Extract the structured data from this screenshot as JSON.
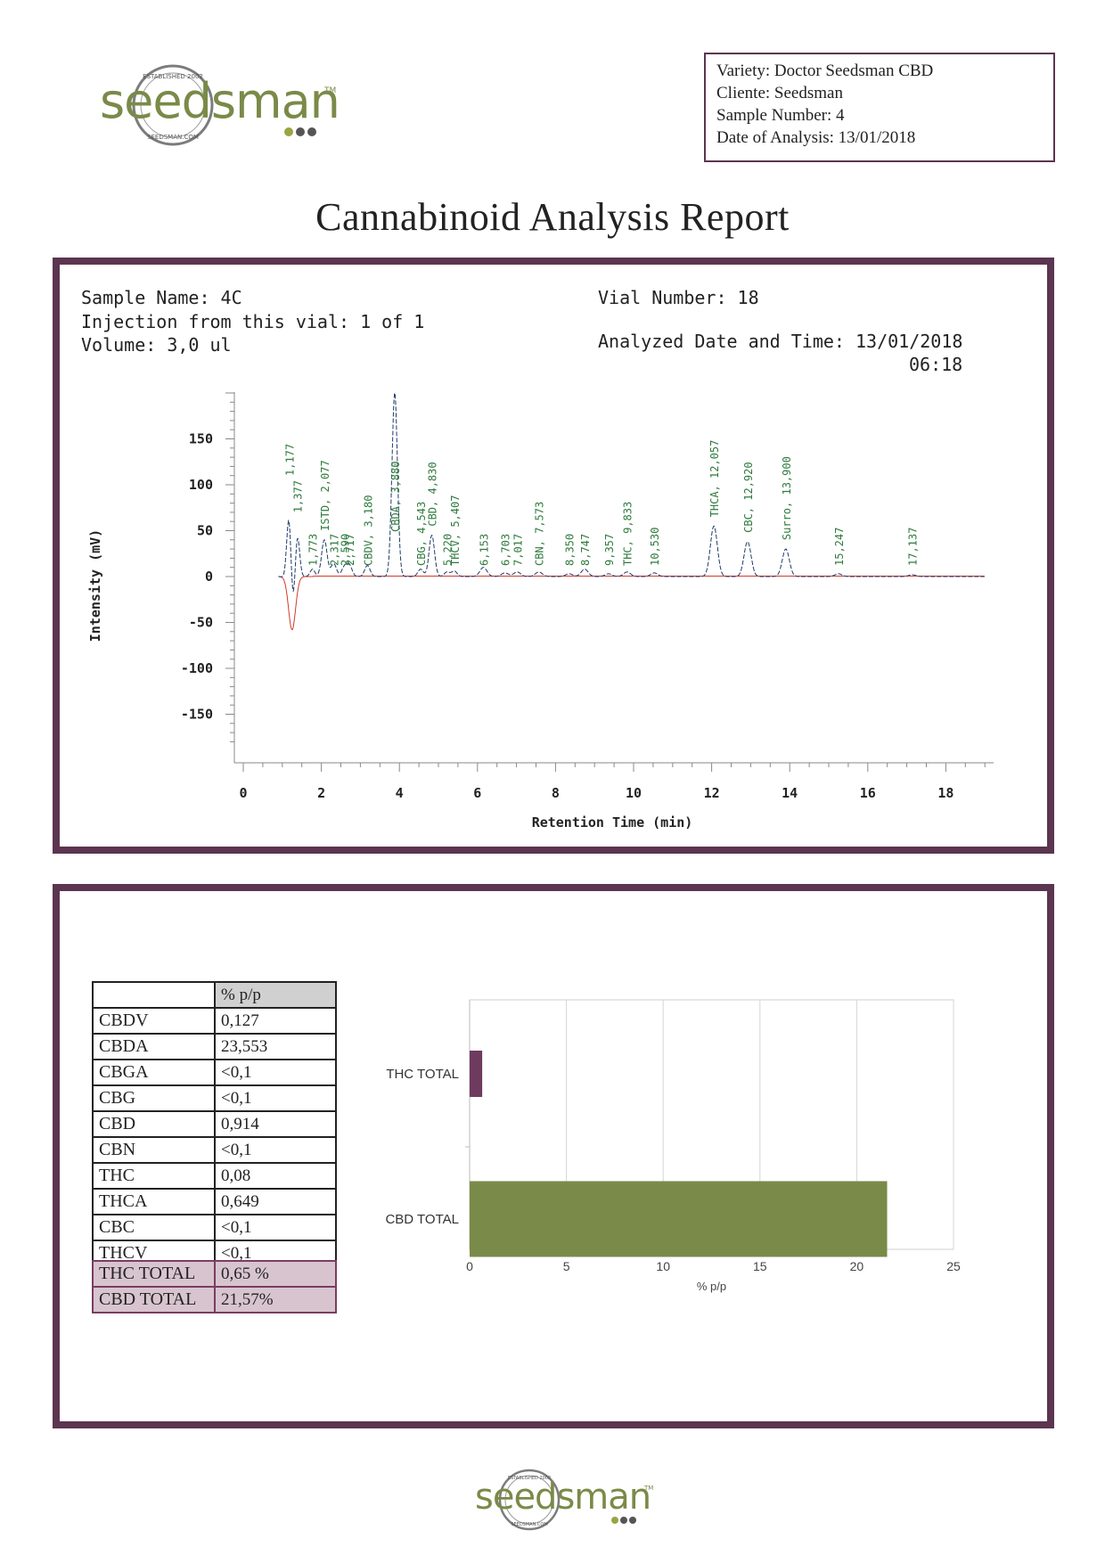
{
  "brand": {
    "name": "seedsman",
    "tm": "TM",
    "seal_top": "ESTABLISHED 2002",
    "seal_bottom": "SEEDSMAN.COM"
  },
  "colors": {
    "olive": "#7a8a48",
    "plum": "#5c3550",
    "dot_olive": "#9aa441",
    "dot_dark": "#555555"
  },
  "info": {
    "variety": "Variety: Doctor Seedsman CBD",
    "cliente": "Cliente: Seedsman",
    "sample_number": "Sample Number: 4",
    "date": "Date of Analysis: 13/01/2018"
  },
  "title": "Cannabinoid Analysis Report",
  "run": {
    "sample_name": "Sample Name: 4C",
    "injection": "Injection from this vial: 1 of 1",
    "volume": "Volume: 3,0 ul",
    "vial": "Vial Number: 18",
    "analyzed": "Analyzed Date and Time: 13/01/2018",
    "analyzed_time": "06:18"
  },
  "chart_data": [
    {
      "type": "line",
      "xlabel": "Retention Time (min)",
      "ylabel": "Intensity (mV)",
      "xlim": [
        0,
        19
      ],
      "ylim": [
        -180,
        200
      ],
      "x_ticks": [
        0,
        2,
        4,
        6,
        8,
        10,
        12,
        14,
        16,
        18
      ],
      "y_ticks": [
        150,
        100,
        50,
        0,
        -50,
        -100,
        -150
      ],
      "peaks": [
        {
          "t": 1.177,
          "h": 100,
          "label": "1,177"
        },
        {
          "t": 1.377,
          "h": 60,
          "label": "1,377"
        },
        {
          "t": 1.773,
          "h": 8,
          "label": "1,773"
        },
        {
          "t": 2.077,
          "h": 40,
          "label": "ISTD, 2,077"
        },
        {
          "t": 2.317,
          "h": 14,
          "label": "2,317"
        },
        {
          "t": 2.59,
          "h": 10,
          "label": "2,590"
        },
        {
          "t": 2.717,
          "h": 12,
          "label": "2,717"
        },
        {
          "t": 3.18,
          "h": 12,
          "label": "CBDV, 3,180"
        },
        {
          "t": 3.88,
          "h": 200,
          "label": "CBDA, 3,880"
        },
        {
          "t": 4.543,
          "h": 8,
          "label": "CBG, 4,543"
        },
        {
          "t": 4.83,
          "h": 45,
          "label": "CBD, 4,830"
        },
        {
          "t": 5.22,
          "h": 5,
          "label": "5,220"
        },
        {
          "t": 5.407,
          "h": 6,
          "label": "THCV, 5,407"
        },
        {
          "t": 6.153,
          "h": 10,
          "label": "6,153"
        },
        {
          "t": 6.703,
          "h": 4,
          "label": "6,703"
        },
        {
          "t": 7.017,
          "h": 5,
          "label": "7,017"
        },
        {
          "t": 7.573,
          "h": 5,
          "label": "CBN, 7,573"
        },
        {
          "t": 8.35,
          "h": 3,
          "label": "8,350"
        },
        {
          "t": 8.747,
          "h": 8,
          "label": "8,747"
        },
        {
          "t": 9.357,
          "h": 3,
          "label": "9,357"
        },
        {
          "t": 9.833,
          "h": 5,
          "label": "THC, 9,833"
        },
        {
          "t": 10.53,
          "h": 4,
          "label": "10,530"
        },
        {
          "t": 12.057,
          "h": 55,
          "label": "THCA, 12,057"
        },
        {
          "t": 12.92,
          "h": 38,
          "label": "CBC, 12,920"
        },
        {
          "t": 13.9,
          "h": 30,
          "label": "Surro, 13,900"
        },
        {
          "t": 15.247,
          "h": 3,
          "label": "15,247"
        },
        {
          "t": 17.137,
          "h": 2,
          "label": "17,137"
        }
      ],
      "negative_dip": {
        "t": 1.25,
        "min": -58
      }
    },
    {
      "type": "bar",
      "orientation": "horizontal",
      "categories": [
        "THC TOTAL",
        "CBD TOTAL"
      ],
      "values": [
        0.65,
        21.57
      ],
      "xlabel": "% p/p",
      "xlim": [
        0,
        25
      ],
      "x_ticks": [
        0,
        5,
        10,
        15,
        20,
        25
      ],
      "colors": [
        "#6e3a5e",
        "#7a8a48"
      ]
    }
  ],
  "results": {
    "header": "% p/p",
    "rows": [
      {
        "name": "CBDV",
        "value": "0,127"
      },
      {
        "name": "CBDA",
        "value": "23,553"
      },
      {
        "name": "CBGA",
        "value": "<0,1"
      },
      {
        "name": "CBG",
        "value": "<0,1"
      },
      {
        "name": "CBD",
        "value": "0,914"
      },
      {
        "name": "CBN",
        "value": "<0,1"
      },
      {
        "name": "THC",
        "value": "0,08"
      },
      {
        "name": "THCA",
        "value": "0,649"
      },
      {
        "name": "CBC",
        "value": "<0,1"
      },
      {
        "name": "THCV",
        "value": "<0,1"
      }
    ],
    "totals": [
      {
        "name": "THC TOTAL",
        "value": "0,65 %"
      },
      {
        "name": "CBD TOTAL",
        "value": "21,57%"
      }
    ]
  }
}
